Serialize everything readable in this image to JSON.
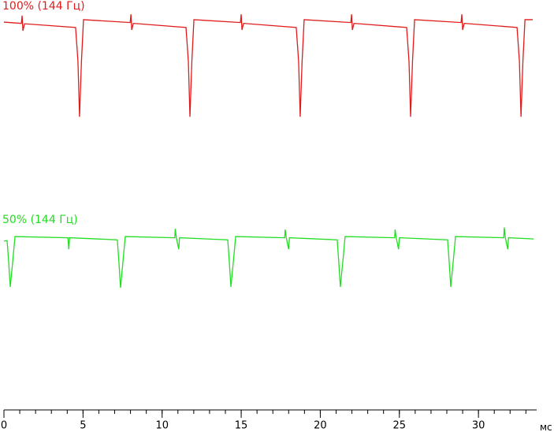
{
  "chart_data": {
    "type": "line",
    "x_label": "мс",
    "xlim": [
      0,
      33.68
    ],
    "ylim": [
      0,
      100
    ],
    "xticks": [
      0,
      5,
      10,
      15,
      20,
      25,
      30
    ],
    "xminorticks": [
      0,
      1,
      2,
      3,
      4,
      5,
      6,
      7,
      8,
      9,
      10,
      11,
      12,
      13,
      14,
      15,
      16,
      17,
      18,
      19,
      20,
      21,
      22,
      23,
      24,
      25,
      26,
      27,
      28,
      29,
      30,
      31,
      32,
      33
    ],
    "series": [
      {
        "name": "100% (144 Гц)",
        "color": "#e01b1b",
        "x": [
          0,
          1.1,
          1.15,
          1.2,
          1.3,
          4.53,
          4.68,
          4.78,
          4.9,
          5.03,
          7.98,
          8.03,
          8.08,
          8.18,
          11.51,
          11.66,
          11.76,
          11.88,
          12.01,
          14.95,
          15.0,
          15.05,
          15.15,
          18.48,
          18.63,
          18.73,
          18.85,
          18.98,
          21.93,
          21.98,
          22.03,
          22.13,
          25.46,
          25.61,
          25.71,
          25.83,
          25.96,
          28.9,
          28.95,
          29.0,
          29.1,
          32.44,
          32.59,
          32.69,
          32.81,
          32.94,
          33.43
        ],
        "values": [
          94.6,
          94.3,
          96.2,
          92.5,
          94.2,
          93.3,
          85,
          71.5,
          85,
          95.2,
          94.5,
          96.5,
          92.7,
          94.3,
          93.3,
          85,
          71.5,
          85,
          95.2,
          94.5,
          96.5,
          92.7,
          94.3,
          93.3,
          85,
          71.5,
          85,
          95.2,
          94.5,
          96.5,
          92.7,
          94.3,
          93.3,
          85,
          71.5,
          85,
          95.2,
          94.5,
          96.5,
          92.7,
          94.3,
          93.3,
          85,
          71.5,
          85,
          95.2,
          95.2
        ]
      },
      {
        "name": "50% (144 Гц)",
        "color": "#22dd22",
        "x": [
          0,
          0.2,
          0.3,
          0.4,
          0.55,
          0.7,
          4.05,
          4.1,
          4.15,
          7.17,
          7.27,
          7.37,
          7.52,
          7.67,
          10.8,
          10.83,
          10.9,
          11.05,
          11.1,
          14.15,
          14.25,
          14.35,
          14.5,
          14.65,
          17.75,
          17.78,
          17.85,
          18.0,
          18.05,
          21.07,
          21.17,
          21.27,
          21.42,
          21.57,
          24.7,
          24.73,
          24.8,
          24.95,
          25.0,
          28.05,
          28.15,
          28.25,
          28.4,
          28.55,
          31.6,
          31.63,
          31.7,
          31.85,
          31.9,
          33.5
        ],
        "values": [
          41.2,
          41.3,
          36,
          30,
          36,
          42.3,
          42,
          39.2,
          42,
          41.5,
          36,
          29.8,
          36,
          42.3,
          42,
          44.2,
          42,
          39.2,
          42,
          41.5,
          36,
          30,
          36,
          42.3,
          42,
          44,
          42,
          39.2,
          42,
          41.5,
          36,
          30,
          36,
          42.3,
          42,
          44,
          42,
          39.2,
          42,
          41.5,
          36,
          30,
          36,
          42.3,
          42,
          44.5,
          42,
          39.2,
          42,
          41.7
        ]
      }
    ]
  }
}
